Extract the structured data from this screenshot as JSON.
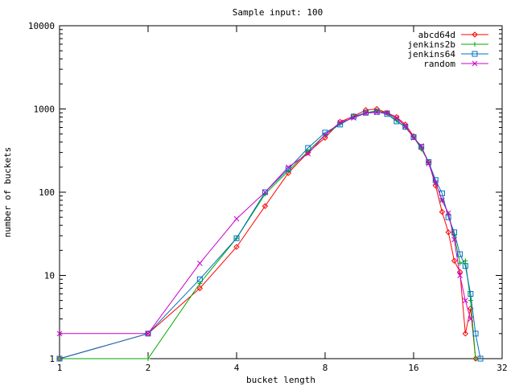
{
  "chart_data": {
    "type": "line",
    "title": "Sample input: 100",
    "xlabel": "bucket length",
    "ylabel": "number of buckets",
    "x_scale": "log2",
    "y_scale": "log10",
    "xlim": [
      1,
      32
    ],
    "ylim": [
      1,
      10000
    ],
    "x_ticks": [
      1,
      2,
      4,
      8,
      16,
      32
    ],
    "x_tick_labels": [
      "1",
      "2",
      "4",
      "8",
      "16",
      "32"
    ],
    "y_ticks": [
      1,
      10,
      100,
      1000,
      10000
    ],
    "y_tick_labels": [
      "1",
      "10",
      "100",
      "1000",
      "10000"
    ],
    "grid": false,
    "legend_position": "top-right",
    "series": [
      {
        "name": "abcd64d",
        "color": "#ff0000",
        "marker": "diamond",
        "x": [
          1,
          2,
          3,
          4,
          5,
          6,
          7,
          8,
          9,
          10,
          11,
          12,
          13,
          14,
          15,
          16,
          17,
          18,
          19,
          20,
          21,
          22,
          23,
          24,
          25,
          26
        ],
        "y": [
          1,
          2,
          7,
          22,
          68,
          170,
          300,
          450,
          700,
          820,
          970,
          1000,
          900,
          800,
          650,
          470,
          340,
          230,
          120,
          58,
          33,
          15,
          11,
          2,
          4,
          1
        ]
      },
      {
        "name": "jenkins2b",
        "color": "#00aa00",
        "marker": "plus",
        "x": [
          1,
          2,
          3,
          4,
          5,
          6,
          7,
          8,
          9,
          10,
          11,
          12,
          13,
          14,
          15,
          16,
          17,
          18,
          19,
          20,
          21,
          22,
          23,
          24,
          25,
          26
        ],
        "y": [
          1,
          1,
          8,
          28,
          95,
          180,
          310,
          490,
          660,
          800,
          900,
          950,
          900,
          730,
          600,
          460,
          330,
          230,
          130,
          80,
          55,
          30,
          14,
          15,
          5,
          1
        ]
      },
      {
        "name": "jenkins64",
        "color": "#0070c0",
        "marker": "square",
        "x": [
          1,
          2,
          3,
          4,
          5,
          6,
          7,
          8,
          9,
          10,
          11,
          12,
          13,
          14,
          15,
          16,
          17,
          18,
          19,
          20,
          21,
          22,
          23,
          24,
          25,
          26,
          27
        ],
        "y": [
          1,
          2,
          9,
          28,
          100,
          190,
          340,
          520,
          650,
          810,
          900,
          920,
          870,
          710,
          610,
          460,
          350,
          230,
          140,
          97,
          50,
          33,
          18,
          13,
          6,
          2,
          1
        ]
      },
      {
        "name": "random",
        "color": "#cc00cc",
        "marker": "cross",
        "x": [
          1,
          2,
          3,
          4,
          5,
          6,
          7,
          8,
          9,
          10,
          11,
          12,
          13,
          14,
          15,
          16,
          17,
          18,
          19,
          20,
          21,
          22,
          23,
          24,
          25
        ],
        "y": [
          2,
          2,
          14,
          48,
          100,
          200,
          290,
          490,
          690,
          780,
          890,
          910,
          900,
          780,
          620,
          450,
          360,
          220,
          130,
          80,
          56,
          27,
          10,
          5,
          3
        ]
      }
    ]
  }
}
